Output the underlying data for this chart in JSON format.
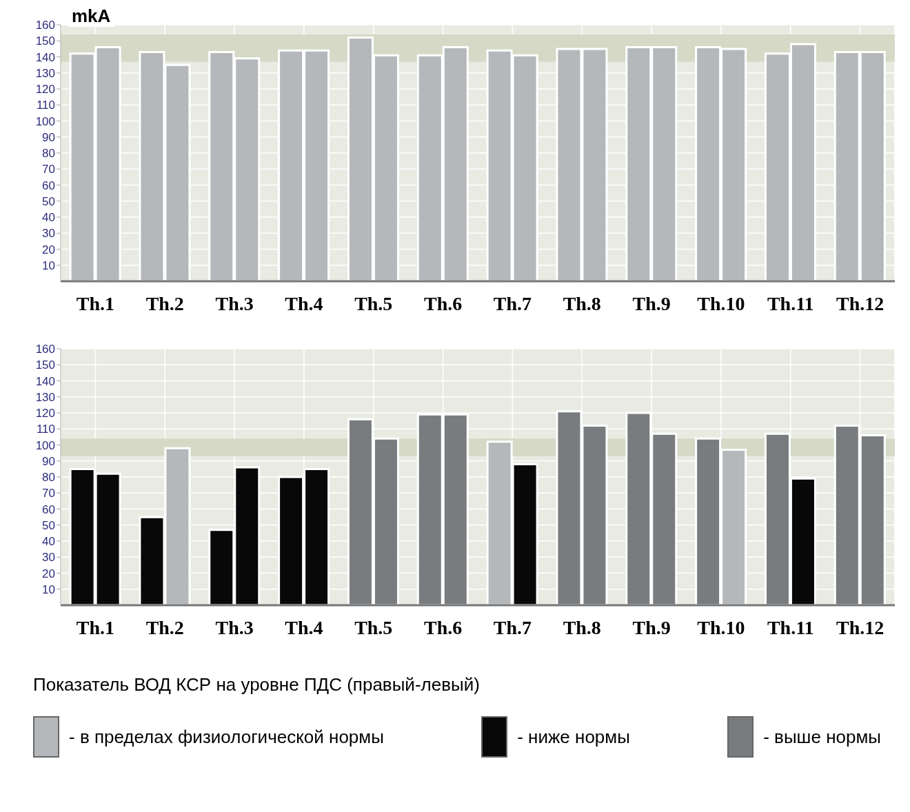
{
  "chart_data": [
    {
      "type": "bar",
      "ylabel": "mkA",
      "categories": [
        "Th.1",
        "Th.2",
        "Th.3",
        "Th.4",
        "Th.5",
        "Th.6",
        "Th.7",
        "Th.8",
        "Th.9",
        "Th.10",
        "Th.11",
        "Th.12"
      ],
      "series": [
        {
          "values": [
            142,
            143,
            143,
            144,
            152,
            141,
            144,
            145,
            146,
            146,
            142,
            143
          ],
          "colors": [
            "#b4b8bb",
            "#b4b8bb",
            "#b4b8bb",
            "#b4b8bb",
            "#b4b8bb",
            "#b4b8bb",
            "#b4b8bb",
            "#b4b8bb",
            "#b4b8bb",
            "#b4b8bb",
            "#b4b8bb",
            "#b4b8bb"
          ]
        },
        {
          "values": [
            146,
            135,
            139,
            144,
            141,
            146,
            141,
            145,
            146,
            145,
            148,
            143
          ],
          "colors": [
            "#b4b8bb",
            "#b4b8bb",
            "#b4b8bb",
            "#b4b8bb",
            "#b4b8bb",
            "#b4b8bb",
            "#b4b8bb",
            "#b4b8bb",
            "#b4b8bb",
            "#b4b8bb",
            "#b4b8bb",
            "#b4b8bb"
          ]
        }
      ],
      "ylim": [
        0,
        160
      ],
      "yticks": [
        10,
        20,
        30,
        40,
        50,
        60,
        70,
        80,
        90,
        100,
        110,
        120,
        130,
        140,
        150,
        160
      ],
      "grid": true,
      "bands": [
        {
          "axis": "y",
          "from": 137,
          "to": 154,
          "color": "#d6d9c6"
        }
      ]
    },
    {
      "type": "bar",
      "categories": [
        "Th.1",
        "Th.2",
        "Th.3",
        "Th.4",
        "Th.5",
        "Th.6",
        "Th.7",
        "Th.8",
        "Th.9",
        "Th.10",
        "Th.11",
        "Th.12"
      ],
      "series": [
        {
          "values": [
            85,
            55,
            47,
            80,
            116,
            119,
            102,
            121,
            120,
            104,
            107,
            112
          ],
          "colors": [
            "#080808",
            "#080808",
            "#080808",
            "#080808",
            "#797c7f",
            "#797c7f",
            "#b4b8bb",
            "#797c7f",
            "#797c7f",
            "#797c7f",
            "#797c7f",
            "#797c7f"
          ]
        },
        {
          "values": [
            82,
            98,
            86,
            85,
            104,
            119,
            88,
            112,
            107,
            97,
            79,
            106
          ],
          "colors": [
            "#080808",
            "#b4b8bb",
            "#080808",
            "#080808",
            "#797c7f",
            "#797c7f",
            "#080808",
            "#797c7f",
            "#797c7f",
            "#b4b8bb",
            "#080808",
            "#797c7f"
          ]
        }
      ],
      "ylim": [
        0,
        160
      ],
      "yticks": [
        10,
        20,
        30,
        40,
        50,
        60,
        70,
        80,
        90,
        100,
        110,
        120,
        130,
        140,
        150,
        160
      ],
      "grid": true,
      "bands": [
        {
          "axis": "y",
          "from": 93,
          "to": 104,
          "color": "#d6d9c6"
        }
      ]
    },
    {
      "type": "other",
      "title": "Показатель ВОД КСР на уровне ПДС (правый-левый)",
      "annotations": [
        "- в пределах физиологической нормы",
        "- ниже нормы",
        "- выше нормы"
      ],
      "colors": [
        "#b4b8bb",
        "#080808",
        "#797c7f"
      ]
    }
  ]
}
